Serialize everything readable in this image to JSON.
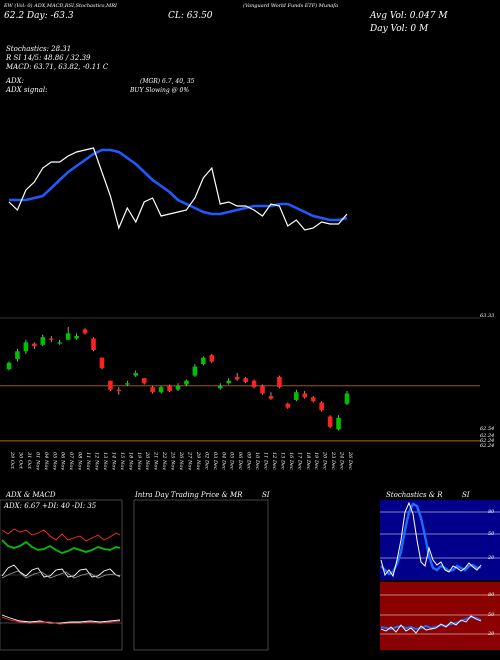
{
  "header": {
    "top_left": "EW (Vol: 0) ADX,MACD,RSI,Stochastics,MRI",
    "left_price": "62.2  Day: -63.3",
    "mid_label": "(Vanguard World Funds ETF) Munafa",
    "cl_label": "CL: 63.50",
    "right_top": "Avg Vol: 0.047 M",
    "right_day": "Day Vol: 0   M"
  },
  "indicators": {
    "stochastics": "Stochastics: 28.31",
    "r_line": "R                     SI 14/5: 48.86  / 32.39",
    "macd": "MACD: 63.71,  63.82,  -0.11 C",
    "adx": "ADX:",
    "adx_mid": "(MGR) 6.7,  40,  35",
    "adx_signal": "ADX  signal:",
    "buy_signal": "BUY Slowing @ 0%"
  },
  "price_labels": [
    "63.33",
    "62.54",
    "62.24",
    "62.24",
    "62.24"
  ],
  "date_labels": [
    "29 Oct",
    "30 Oct",
    "31 Oct",
    "01 Nov",
    "04 Nov",
    "05 Nov",
    "06 Nov",
    "07 Nov",
    "08 Nov",
    "11 Nov",
    "12 Nov",
    "13 Nov",
    "14 Nov",
    "15 Nov",
    "18 Nov",
    "19 Nov",
    "20 Nov",
    "21 Nov",
    "22 Nov",
    "25 Nov",
    "26 Nov",
    "27 Nov",
    "29 Nov",
    "02 Dec",
    "03 Dec",
    "04 Dec",
    "05 Dec",
    "06 Dec",
    "09 Dec",
    "10 Dec",
    "11 Dec",
    "12 Dec",
    "13 Dec",
    "16 Dec",
    "17 Dec",
    "18 Dec",
    "19 Dec",
    "20 Dec",
    "23 Dec",
    "24 Dec",
    "26 Dec"
  ],
  "panels": {
    "adx_title": "ADX  & MACD",
    "adx_values": "ADX: 6.67  +DI: 40  -DI: 35",
    "mri_title": "Intra  Day Trading Price  & MR",
    "mri_si": "SI",
    "stoch_title": "Stochastics & R",
    "stoch_si": "SI",
    "stoch_ticks": [
      "80",
      "50",
      "20"
    ],
    "rsi_ticks": [
      "80",
      "50",
      "20"
    ]
  },
  "colors": {
    "up": "#00c000",
    "down": "#ff2020",
    "ma_line": "#1e5aff",
    "price_line": "#ffffff",
    "ref_line": "#b8680c"
  },
  "chart_data": {
    "type": "candlestick",
    "categories": [
      "29 Oct",
      "30 Oct",
      "31 Oct",
      "01 Nov",
      "04 Nov",
      "05 Nov",
      "06 Nov",
      "07 Nov",
      "08 Nov",
      "11 Nov",
      "12 Nov",
      "13 Nov",
      "14 Nov",
      "15 Nov",
      "18 Nov",
      "19 Nov",
      "20 Nov",
      "21 Nov",
      "22 Nov",
      "25 Nov",
      "26 Nov",
      "27 Nov",
      "29 Nov",
      "02 Dec",
      "03 Dec",
      "04 Dec",
      "05 Dec",
      "06 Dec",
      "09 Dec",
      "10 Dec",
      "11 Dec",
      "12 Dec",
      "13 Dec",
      "16 Dec",
      "17 Dec",
      "18 Dec",
      "19 Dec",
      "20 Dec",
      "23 Dec",
      "24 Dec",
      "26 Dec"
    ],
    "candles": [
      {
        "o": 63.1,
        "c": 63.15,
        "h": 63.16,
        "l": 63.09
      },
      {
        "o": 63.18,
        "c": 63.24,
        "h": 63.26,
        "l": 63.16
      },
      {
        "o": 63.24,
        "c": 63.31,
        "h": 63.33,
        "l": 63.22
      },
      {
        "o": 63.3,
        "c": 63.28,
        "h": 63.31,
        "l": 63.26
      },
      {
        "o": 63.29,
        "c": 63.35,
        "h": 63.37,
        "l": 63.28
      },
      {
        "o": 63.34,
        "c": 63.33,
        "h": 63.36,
        "l": 63.31
      },
      {
        "o": 63.3,
        "c": 63.31,
        "h": 63.33,
        "l": 63.29
      },
      {
        "o": 63.33,
        "c": 63.38,
        "h": 63.43,
        "l": 63.33
      },
      {
        "o": 63.34,
        "c": 63.36,
        "h": 63.38,
        "l": 63.33
      },
      {
        "o": 63.41,
        "c": 63.38,
        "h": 63.42,
        "l": 63.37
      },
      {
        "o": 63.34,
        "c": 63.25,
        "h": 63.35,
        "l": 63.24
      },
      {
        "o": 63.19,
        "c": 63.11,
        "h": 63.19,
        "l": 63.1
      },
      {
        "o": 63.01,
        "c": 62.94,
        "h": 63.01,
        "l": 62.93
      },
      {
        "o": 62.94,
        "c": 62.93,
        "h": 62.96,
        "l": 62.9
      },
      {
        "o": 62.98,
        "c": 62.99,
        "h": 63.01,
        "l": 62.97
      },
      {
        "o": 63.05,
        "c": 63.07,
        "h": 63.09,
        "l": 63.04
      },
      {
        "o": 63.03,
        "c": 62.99,
        "h": 63.03,
        "l": 62.98
      },
      {
        "o": 62.96,
        "c": 62.92,
        "h": 62.97,
        "l": 62.91
      },
      {
        "o": 62.92,
        "c": 62.96,
        "h": 62.97,
        "l": 62.91
      },
      {
        "o": 62.97,
        "c": 62.93,
        "h": 62.98,
        "l": 62.92
      },
      {
        "o": 62.94,
        "c": 62.97,
        "h": 62.99,
        "l": 62.93
      },
      {
        "o": 62.98,
        "c": 63.01,
        "h": 63.02,
        "l": 62.97
      },
      {
        "o": 63.05,
        "c": 63.12,
        "h": 63.14,
        "l": 63.04
      },
      {
        "o": 63.14,
        "c": 63.19,
        "h": 63.2,
        "l": 63.13
      },
      {
        "o": 63.21,
        "c": 63.16,
        "h": 63.22,
        "l": 63.15
      },
      {
        "o": 62.95,
        "c": 62.97,
        "h": 62.99,
        "l": 62.94
      },
      {
        "o": 62.99,
        "c": 63.01,
        "h": 63.03,
        "l": 62.98
      },
      {
        "o": 63.04,
        "c": 63.02,
        "h": 63.07,
        "l": 63.01
      },
      {
        "o": 63.03,
        "c": 63.0,
        "h": 63.04,
        "l": 62.99
      },
      {
        "o": 63.01,
        "c": 62.96,
        "h": 63.02,
        "l": 62.95
      },
      {
        "o": 62.97,
        "c": 62.91,
        "h": 62.98,
        "l": 62.9
      },
      {
        "o": 62.89,
        "c": 62.87,
        "h": 62.92,
        "l": 62.86
      },
      {
        "o": 63.04,
        "c": 62.96,
        "h": 63.05,
        "l": 62.95
      },
      {
        "o": 62.83,
        "c": 62.8,
        "h": 62.84,
        "l": 62.79
      },
      {
        "o": 62.86,
        "c": 62.92,
        "h": 62.94,
        "l": 62.85
      },
      {
        "o": 62.91,
        "c": 62.88,
        "h": 62.93,
        "l": 62.87
      },
      {
        "o": 62.88,
        "c": 62.85,
        "h": 62.89,
        "l": 62.84
      },
      {
        "o": 62.84,
        "c": 62.78,
        "h": 62.85,
        "l": 62.77
      },
      {
        "o": 62.73,
        "c": 62.65,
        "h": 62.74,
        "l": 62.64
      },
      {
        "o": 62.63,
        "c": 62.72,
        "h": 62.74,
        "l": 62.62
      },
      {
        "o": 62.83,
        "c": 62.91,
        "h": 62.93,
        "l": 62.82
      }
    ],
    "ref_lines": [
      62.97,
      62.54
    ],
    "ylim": [
      62.5,
      63.5
    ],
    "ma_line": [
      62.98,
      62.98,
      62.98,
      62.99,
      63.0,
      63.04,
      63.08,
      63.12,
      63.15,
      63.18,
      63.21,
      63.23,
      63.23,
      63.22,
      63.19,
      63.16,
      63.12,
      63.08,
      63.05,
      63.02,
      62.98,
      62.96,
      62.94,
      62.92,
      62.91,
      62.91,
      62.92,
      62.93,
      62.94,
      62.95,
      62.95,
      62.95,
      62.96,
      62.96,
      62.94,
      62.92,
      62.9,
      62.89,
      62.88,
      62.88,
      62.89
    ],
    "close_line": [
      62.97,
      62.93,
      63.03,
      63.07,
      63.14,
      63.17,
      63.17,
      63.2,
      63.22,
      63.23,
      63.24,
      63.12,
      63.0,
      62.84,
      62.94,
      62.87,
      62.97,
      62.99,
      62.9,
      62.91,
      62.92,
      62.93,
      62.99,
      63.09,
      63.14,
      62.96,
      62.97,
      62.95,
      62.95,
      62.93,
      62.9,
      62.96,
      62.95,
      62.85,
      62.88,
      62.83,
      62.84,
      62.87,
      62.86,
      62.86,
      62.91
    ]
  }
}
